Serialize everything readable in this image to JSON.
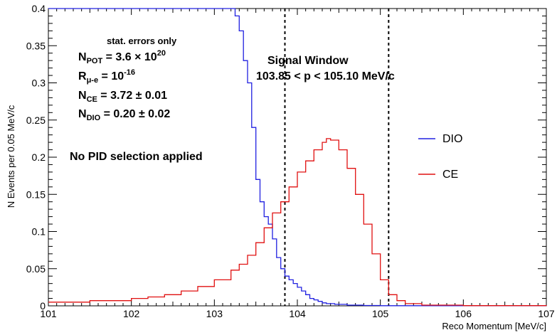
{
  "chart_data": {
    "type": "line",
    "xlabel": "Reco Momentum [MeV/c]",
    "ylabel": "N Events per 0.05 MeV/c",
    "xlim": [
      101,
      107
    ],
    "ylim": [
      0,
      0.4
    ],
    "xticks": [
      "101",
      "102",
      "103",
      "104",
      "105",
      "106",
      "107"
    ],
    "yticks": [
      "0",
      "0.05",
      "0.1",
      "0.15",
      "0.2",
      "0.25",
      "0.3",
      "0.35",
      "0.4"
    ],
    "grid": false,
    "legend": {
      "placement": "right",
      "entries": [
        {
          "name": "DIO",
          "color": "#2020e0"
        },
        {
          "name": "CE",
          "color": "#e01010"
        }
      ]
    },
    "vlines": [
      103.85,
      105.1
    ],
    "annotations": {
      "stat": "stat. errors only",
      "npot_main": "N",
      "npot_sub": "POT",
      "npot_val": " = 3.6 × 10",
      "npot_exp": "20",
      "r_main": "R",
      "r_sub": "μ-e",
      "r_val": " = 10",
      "r_exp": "-16",
      "nce_main": "N",
      "nce_sub": "CE",
      "nce_val": " = 3.72 ± 0.01",
      "ndio_main": "N",
      "ndio_sub": "DIO",
      "ndio_val": " = 0.20 ± 0.02",
      "signal_title": "Signal Window",
      "signal_range": "103.85 < p < 105.10 MeV/c",
      "pid": "No PID selection applied"
    },
    "series": [
      {
        "name": "DIO",
        "color": "#2020e0",
        "points": [
          [
            101.0,
            0.4
          ],
          [
            103.15,
            0.4
          ],
          [
            103.2,
            0.4
          ],
          [
            103.25,
            0.39
          ],
          [
            103.3,
            0.37
          ],
          [
            103.35,
            0.33
          ],
          [
            103.4,
            0.3
          ],
          [
            103.45,
            0.24
          ],
          [
            103.5,
            0.17
          ],
          [
            103.55,
            0.14
          ],
          [
            103.6,
            0.12
          ],
          [
            103.65,
            0.11
          ],
          [
            103.7,
            0.09
          ],
          [
            103.75,
            0.065
          ],
          [
            103.8,
            0.05
          ],
          [
            103.85,
            0.04
          ],
          [
            103.9,
            0.035
          ],
          [
            103.95,
            0.03
          ],
          [
            104.0,
            0.025
          ],
          [
            104.05,
            0.02
          ],
          [
            104.1,
            0.015
          ],
          [
            104.15,
            0.01
          ],
          [
            104.2,
            0.008
          ],
          [
            104.25,
            0.006
          ],
          [
            104.3,
            0.004
          ],
          [
            104.35,
            0.003
          ],
          [
            104.45,
            0.002
          ],
          [
            104.6,
            0.001
          ],
          [
            104.8,
            0.0005
          ],
          [
            105.0,
            0.0002
          ],
          [
            107.0,
            0.0
          ]
        ]
      },
      {
        "name": "CE",
        "color": "#e01010",
        "points": [
          [
            101.0,
            0.005
          ],
          [
            101.5,
            0.007
          ],
          [
            102.0,
            0.01
          ],
          [
            102.2,
            0.012
          ],
          [
            102.4,
            0.015
          ],
          [
            102.6,
            0.02
          ],
          [
            102.8,
            0.026
          ],
          [
            103.0,
            0.035
          ],
          [
            103.2,
            0.048
          ],
          [
            103.3,
            0.056
          ],
          [
            103.4,
            0.068
          ],
          [
            103.5,
            0.085
          ],
          [
            103.6,
            0.105
          ],
          [
            103.7,
            0.125
          ],
          [
            103.8,
            0.14
          ],
          [
            103.9,
            0.16
          ],
          [
            104.0,
            0.18
          ],
          [
            104.1,
            0.195
          ],
          [
            104.2,
            0.21
          ],
          [
            104.3,
            0.22
          ],
          [
            104.35,
            0.225
          ],
          [
            104.4,
            0.223
          ],
          [
            104.5,
            0.21
          ],
          [
            104.6,
            0.185
          ],
          [
            104.7,
            0.15
          ],
          [
            104.8,
            0.11
          ],
          [
            104.9,
            0.07
          ],
          [
            105.0,
            0.035
          ],
          [
            105.1,
            0.015
          ],
          [
            105.2,
            0.007
          ],
          [
            105.3,
            0.003
          ],
          [
            105.5,
            0.001
          ],
          [
            106.0,
            0.0003
          ],
          [
            107.0,
            0.0
          ]
        ]
      }
    ]
  }
}
